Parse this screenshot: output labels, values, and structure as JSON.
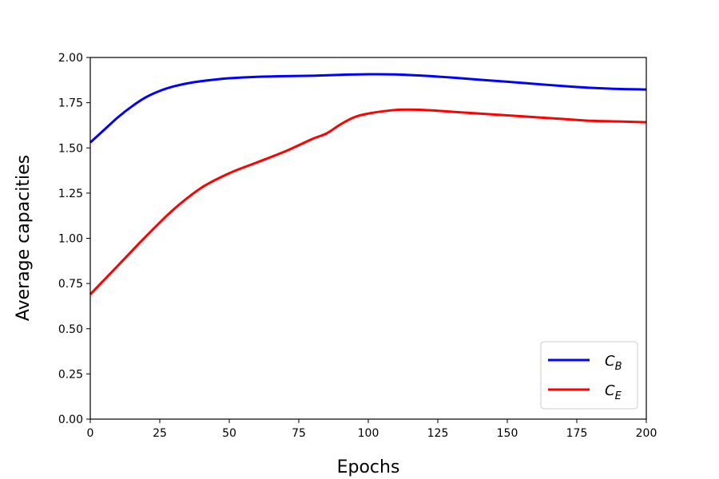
{
  "chart_data": {
    "type": "line",
    "xlabel": "Epochs",
    "ylabel": "Average capacities",
    "xlim": [
      0,
      200
    ],
    "ylim": [
      0,
      2.0
    ],
    "xticks": [
      "0",
      "25",
      "50",
      "75",
      "100",
      "125",
      "150",
      "175",
      "200"
    ],
    "yticks": [
      "0.00",
      "0.25",
      "0.50",
      "0.75",
      "1.00",
      "1.25",
      "1.50",
      "1.75",
      "2.00"
    ],
    "grid": false,
    "legend_position": "lower-right",
    "series": [
      {
        "name": "C",
        "subscript": "B",
        "color": "#0000ff",
        "x": [
          0,
          5,
          10,
          15,
          20,
          25,
          30,
          35,
          40,
          45,
          50,
          60,
          70,
          80,
          90,
          100,
          110,
          120,
          130,
          140,
          150,
          160,
          170,
          180,
          190,
          200
        ],
        "y": [
          1.53,
          1.6,
          1.67,
          1.73,
          1.78,
          1.815,
          1.84,
          1.857,
          1.869,
          1.878,
          1.885,
          1.893,
          1.897,
          1.899,
          1.904,
          1.907,
          1.906,
          1.899,
          1.889,
          1.877,
          1.866,
          1.854,
          1.842,
          1.832,
          1.826,
          1.823
        ]
      },
      {
        "name": "C",
        "subscript": "E",
        "color": "#ff0000",
        "x": [
          0,
          10,
          20,
          30,
          40,
          50,
          60,
          70,
          80,
          85,
          90,
          95,
          100,
          110,
          120,
          130,
          140,
          150,
          160,
          170,
          180,
          190,
          200
        ],
        "y": [
          0.69,
          0.85,
          1.01,
          1.16,
          1.28,
          1.36,
          1.42,
          1.48,
          1.55,
          1.58,
          1.63,
          1.67,
          1.69,
          1.71,
          1.71,
          1.7,
          1.69,
          1.68,
          1.67,
          1.66,
          1.65,
          1.646,
          1.642
        ]
      }
    ]
  }
}
